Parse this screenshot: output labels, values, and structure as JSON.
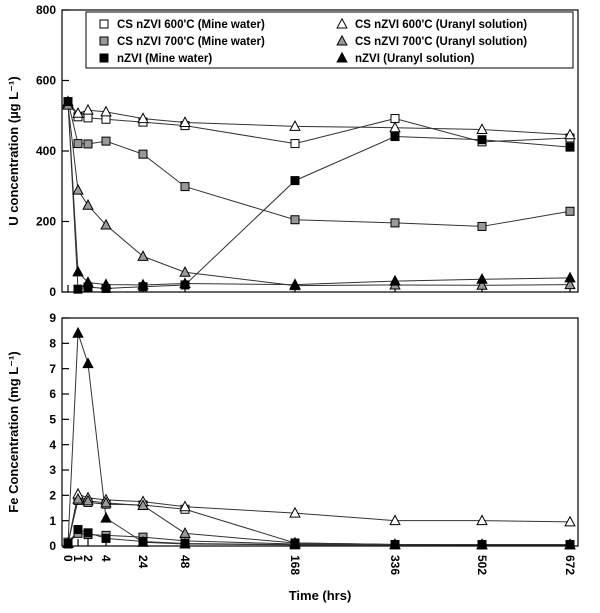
{
  "figure": {
    "background": "#ffffff",
    "axis_color": "#000000",
    "line_color": "#333333",
    "marker_fills": {
      "open": "#ffffff",
      "gray": "#999999",
      "black": "#000000"
    }
  },
  "chart_data": [
    {
      "type": "line",
      "title": "",
      "xlabel": "Time (hrs)",
      "ylabel": "U concentration (µg L⁻¹)",
      "x": [
        0,
        1,
        2,
        4,
        24,
        48,
        168,
        336,
        502,
        672
      ],
      "ylim": [
        0,
        800
      ],
      "ytick_step": 200,
      "grid": false,
      "legend_position": "top-inside",
      "series": [
        {
          "name": "CS nZVI 600'C (Mine water)",
          "marker": "square",
          "fill": "open",
          "values": [
            540,
            497,
            494,
            490,
            482,
            472,
            421,
            492,
            426,
            437
          ]
        },
        {
          "name": "CS nZVI 700'C (Mine water)",
          "marker": "square",
          "fill": "gray",
          "values": [
            540,
            421,
            420,
            428,
            391,
            299,
            205,
            196,
            186,
            229
          ]
        },
        {
          "name": "nZVI (Mine water)",
          "marker": "square",
          "fill": "black",
          "values": [
            540,
            8,
            14,
            10,
            15,
            20,
            316,
            441,
            432,
            411
          ]
        },
        {
          "name": "CS nZVI 600'C (Uranyl solution)",
          "marker": "triangle",
          "fill": "open",
          "values": [
            535,
            507,
            516,
            511,
            492,
            481,
            470,
            466,
            461,
            446
          ]
        },
        {
          "name": "CS nZVI 700'C (Uranyl solution)",
          "marker": "triangle",
          "fill": "gray",
          "values": [
            530,
            289,
            246,
            190,
            101,
            56,
            18,
            20,
            19,
            21
          ]
        },
        {
          "name": "nZVI (Uranyl solution)",
          "marker": "triangle",
          "fill": "black",
          "values": [
            540,
            57,
            27,
            21,
            20,
            24,
            21,
            31,
            36,
            40
          ]
        }
      ]
    },
    {
      "type": "line",
      "title": "",
      "xlabel": "Time (hrs)",
      "ylabel": "Fe Concentration (mg L⁻¹)",
      "x": [
        0,
        1,
        2,
        4,
        24,
        48,
        168,
        336,
        502,
        672
      ],
      "ylim": [
        0,
        9
      ],
      "ytick_step": 1,
      "grid": false,
      "legend_position": "none",
      "series": [
        {
          "name": "CS nZVI 600'C (Mine water)",
          "marker": "square",
          "fill": "open",
          "values": [
            0.15,
            1.8,
            1.72,
            1.65,
            1.62,
            1.45,
            0.12,
            0.06,
            0.05,
            0.05
          ]
        },
        {
          "name": "CS nZVI 700'C (Mine water)",
          "marker": "square",
          "fill": "gray",
          "values": [
            0.1,
            0.5,
            0.45,
            0.42,
            0.35,
            0.2,
            0.08,
            0.05,
            0.05,
            0.05
          ]
        },
        {
          "name": "nZVI (Mine water)",
          "marker": "square",
          "fill": "black",
          "values": [
            0.08,
            0.65,
            0.52,
            0.3,
            0.18,
            0.1,
            0.05,
            0.05,
            0.05,
            0.05
          ]
        },
        {
          "name": "CS nZVI 600'C (Uranyl solution)",
          "marker": "triangle",
          "fill": "open",
          "values": [
            0.1,
            2.05,
            1.9,
            1.82,
            1.75,
            1.55,
            1.3,
            1.0,
            1.0,
            0.95
          ]
        },
        {
          "name": "CS nZVI 700'C (Uranyl solution)",
          "marker": "triangle",
          "fill": "gray",
          "values": [
            0.1,
            1.85,
            1.78,
            1.7,
            1.6,
            0.5,
            0.12,
            0.06,
            0.05,
            0.05
          ]
        },
        {
          "name": "nZVI (Uranyl solution)",
          "marker": "triangle",
          "fill": "black",
          "values": [
            0.1,
            8.4,
            7.2,
            1.1,
            0.15,
            0.08,
            0.05,
            0.05,
            0.05,
            0.05
          ]
        }
      ]
    }
  ],
  "legend": {
    "columns": [
      [
        0,
        1,
        2
      ],
      [
        3,
        4,
        5
      ]
    ]
  }
}
